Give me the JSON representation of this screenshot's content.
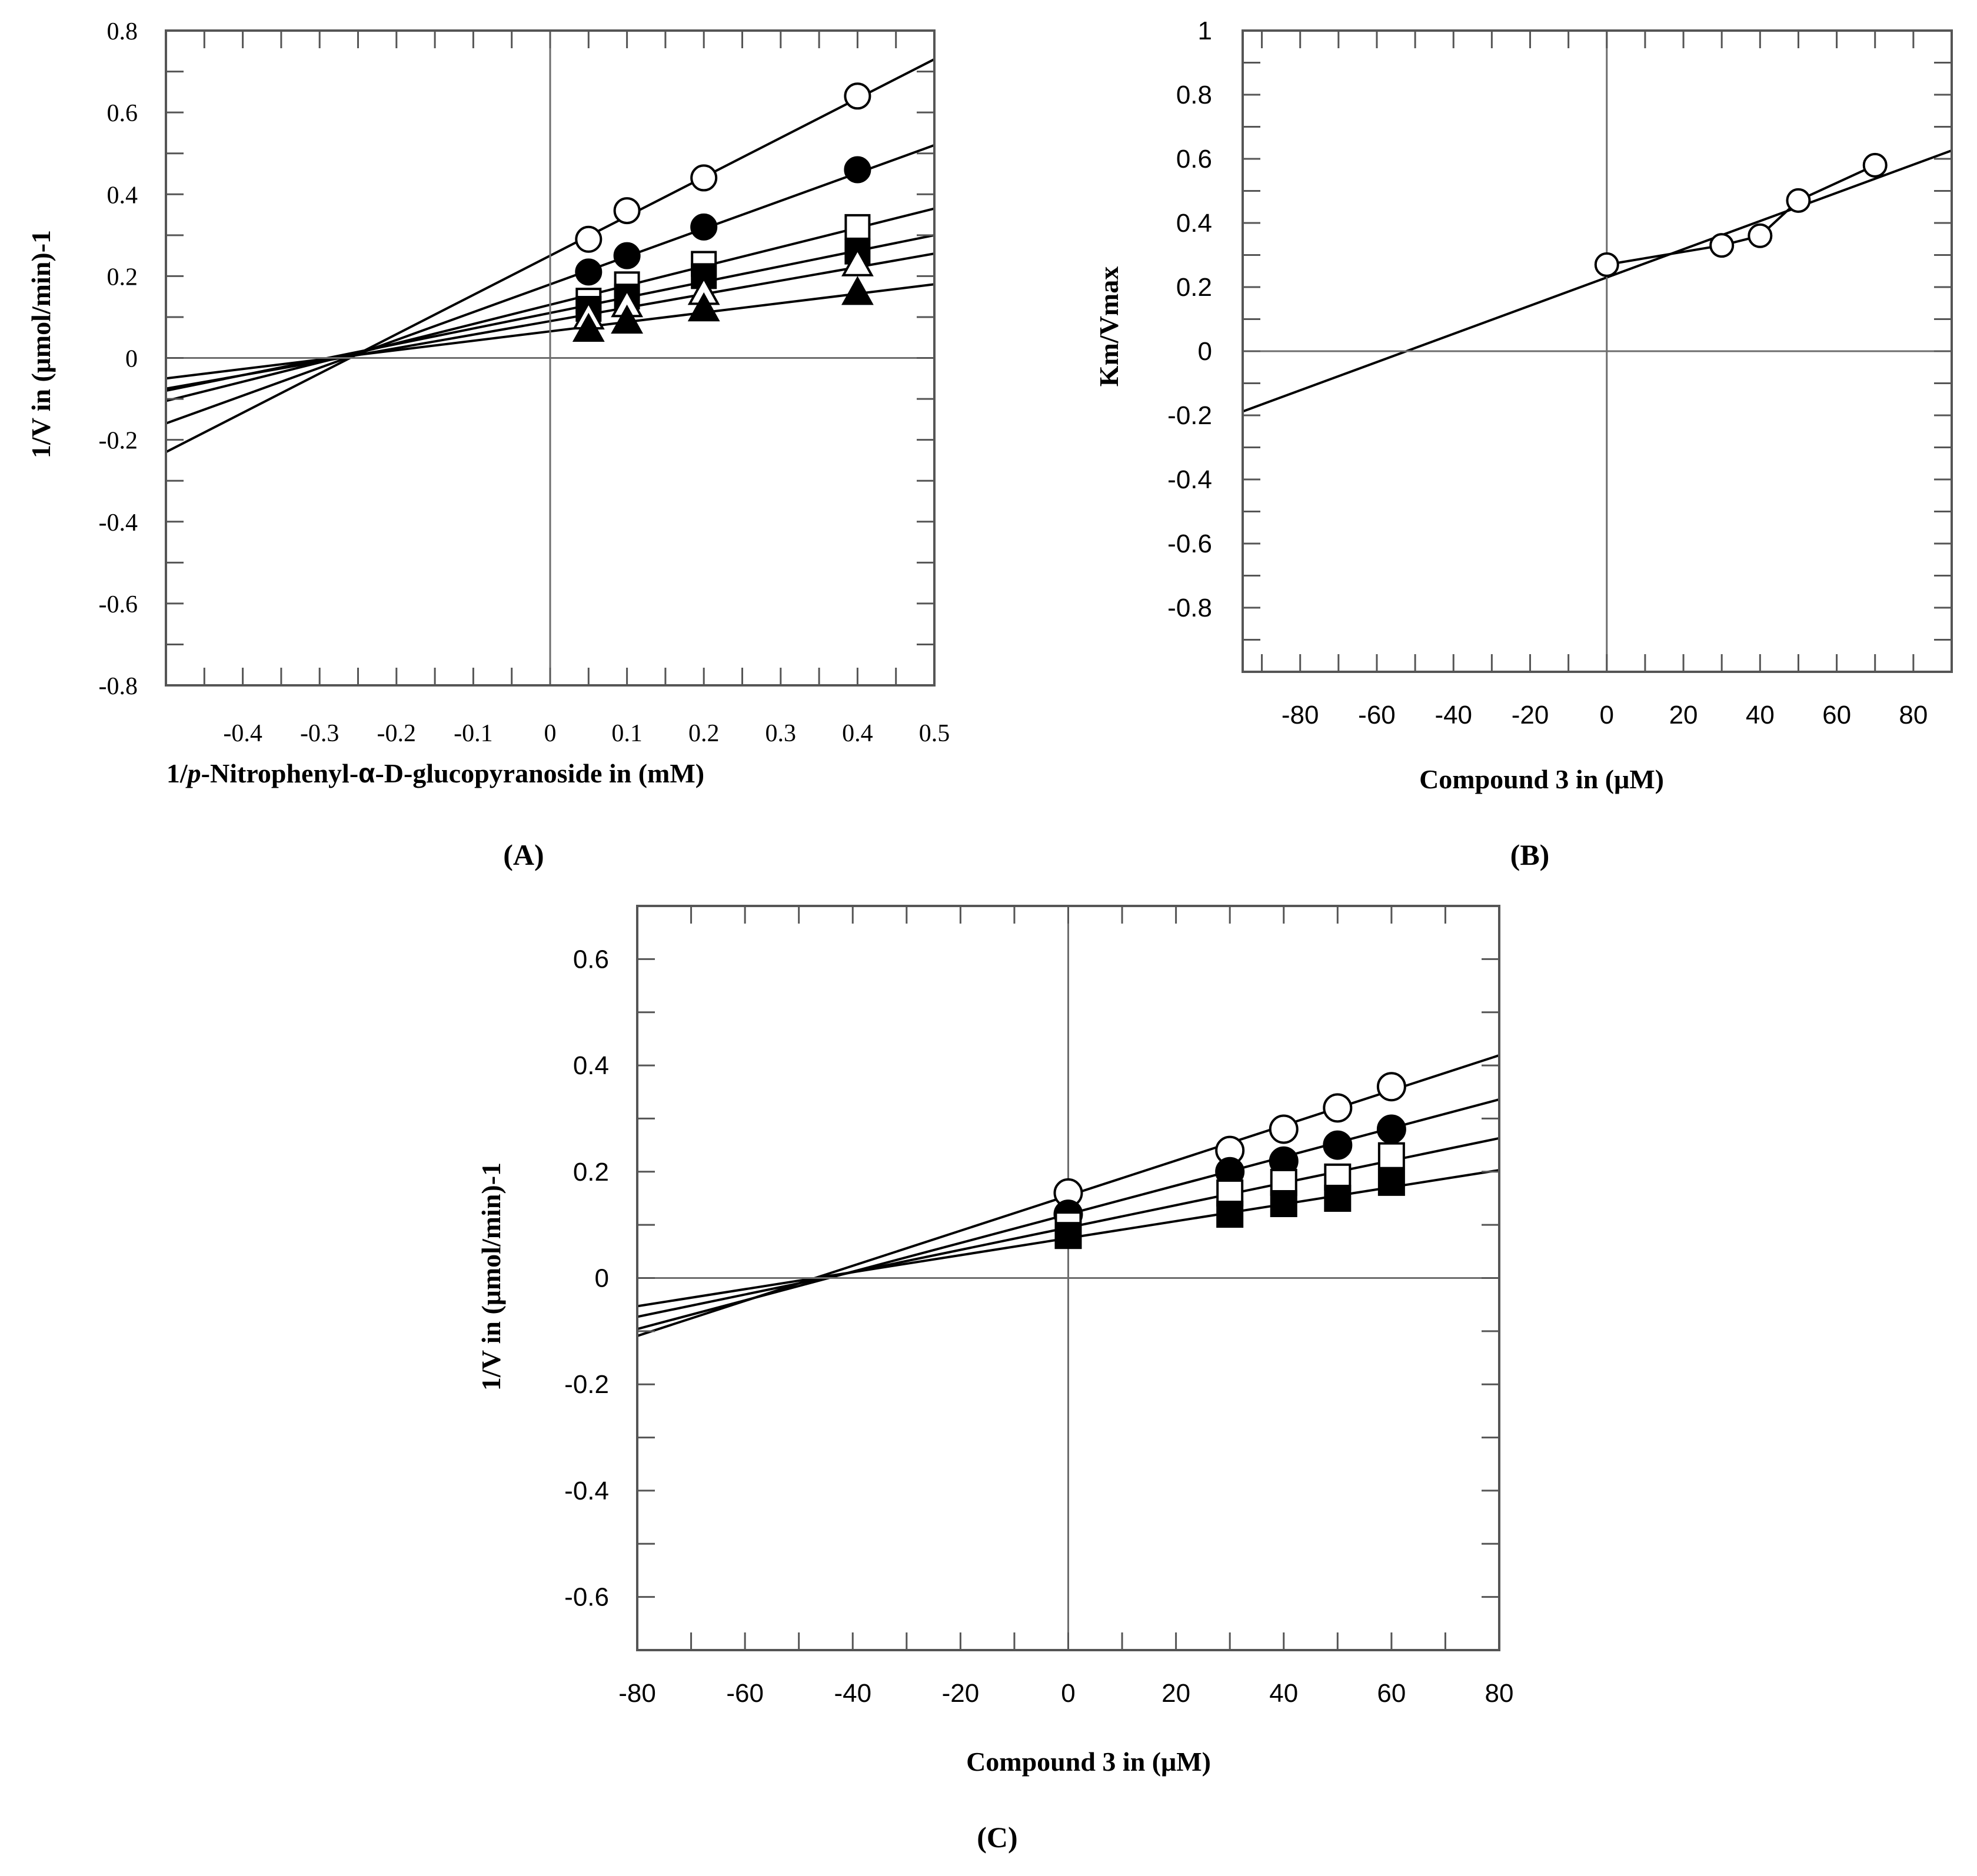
{
  "chart_data": [
    {
      "id": "A",
      "type": "scatter",
      "panel_label": "(A)",
      "xlabel": "1/p-Nitrophenyl-α-D-glucopyranoside in (mM)",
      "xlabel_parts": [
        "1/",
        "p",
        "-Nitrophenyl-",
        "α",
        "-D-glucopyranoside in (mM)"
      ],
      "ylabel": "1/V in (μmol/min)-1",
      "xlim": [
        -0.5,
        0.5
      ],
      "ylim": [
        -0.8,
        0.8
      ],
      "x_tick_labels": [
        "-0.4",
        "-0.3",
        "-0.2",
        "-0.1",
        "0",
        "0.1",
        "0.2",
        "0.3",
        "0.4",
        "0.5"
      ],
      "x_tick_values": [
        -0.4,
        -0.3,
        -0.2,
        -0.1,
        0,
        0.1,
        0.2,
        0.3,
        0.4,
        0.5
      ],
      "y_tick_labels": [
        "0.8",
        "0.6",
        "0.4",
        "0.2",
        "0",
        "-0.2",
        "-0.4",
        "-0.6",
        "-0.8"
      ],
      "y_tick_values": [
        0.8,
        0.6,
        0.4,
        0.2,
        0,
        -0.2,
        -0.4,
        -0.6,
        -0.8
      ],
      "x": [
        0.05,
        0.1,
        0.2,
        0.4
      ],
      "line_range": [
        -0.5,
        0.5
      ],
      "series": [
        {
          "name": "open circle",
          "marker": "circle",
          "fill": "open",
          "values": [
            0.29,
            0.36,
            0.44,
            0.64
          ],
          "fit": {
            "slope": 0.96,
            "intercept": 0.25
          }
        },
        {
          "name": "filled circle",
          "marker": "circle",
          "fill": "filled",
          "values": [
            0.21,
            0.25,
            0.32,
            0.46
          ],
          "fit": {
            "slope": 0.68,
            "intercept": 0.18
          }
        },
        {
          "name": "open square",
          "marker": "square",
          "fill": "open",
          "values": [
            0.14,
            0.18,
            0.23,
            0.32
          ],
          "fit": {
            "slope": 0.47,
            "intercept": 0.13
          }
        },
        {
          "name": "filled square",
          "marker": "square",
          "fill": "filled",
          "values": [
            0.12,
            0.15,
            0.2,
            0.26
          ],
          "fit": {
            "slope": 0.38,
            "intercept": 0.11
          }
        },
        {
          "name": "open triangle",
          "marker": "triangle",
          "fill": "open",
          "values": [
            0.1,
            0.13,
            0.16,
            0.23
          ],
          "fit": {
            "slope": 0.33,
            "intercept": 0.09
          }
        },
        {
          "name": "filled triangle",
          "marker": "triangle",
          "fill": "filled",
          "values": [
            0.07,
            0.09,
            0.12,
            0.16
          ],
          "fit": {
            "slope": 0.23,
            "intercept": 0.065
          }
        }
      ]
    },
    {
      "id": "B",
      "type": "scatter",
      "panel_label": "(B)",
      "xlabel": "Compound 3 in (μM)",
      "ylabel": "Km/Vmax",
      "xlim": [
        -95,
        90
      ],
      "ylim": [
        -1.0,
        1.0
      ],
      "x_tick_labels": [
        "-80",
        "-60",
        "-40",
        "-20",
        "0",
        "20",
        "40",
        "60",
        "80"
      ],
      "x_tick_values": [
        -80,
        -60,
        -40,
        -20,
        0,
        20,
        40,
        60,
        80
      ],
      "y_tick_labels": [
        "1",
        "0.8",
        "0.6",
        "0.4",
        "0.2",
        "0",
        "-0.2",
        "-0.4",
        "-0.6",
        "-0.8"
      ],
      "y_tick_values": [
        1,
        0.8,
        0.6,
        0.4,
        0.2,
        0,
        -0.2,
        -0.4,
        -0.6,
        -0.8
      ],
      "x": [
        0,
        30,
        40,
        50,
        70
      ],
      "line_range": [
        -95,
        90
      ],
      "series": [
        {
          "name": "Km/Vmax",
          "marker": "circle",
          "fill": "open",
          "values": [
            0.27,
            0.33,
            0.36,
            0.47,
            0.58
          ],
          "fit": {
            "slope": 0.0044,
            "intercept": 0.23
          },
          "connect_points": true
        }
      ]
    },
    {
      "id": "C",
      "type": "scatter",
      "panel_label": "(C)",
      "xlabel": "Compound 3 in (μM)",
      "ylabel": "1/V in (μmol/min)-1",
      "xlim": [
        -80,
        80
      ],
      "ylim": [
        -0.7,
        0.7
      ],
      "x_tick_labels": [
        "-80",
        "-60",
        "-40",
        "-20",
        "0",
        "20",
        "40",
        "60",
        "80"
      ],
      "x_tick_values": [
        -80,
        -60,
        -40,
        -20,
        0,
        20,
        40,
        60,
        80
      ],
      "y_tick_labels": [
        "0.6",
        "0.4",
        "0.2",
        "0",
        "-0.2",
        "-0.4",
        "-0.6"
      ],
      "y_tick_values": [
        0.6,
        0.4,
        0.2,
        0,
        -0.2,
        -0.4,
        -0.6
      ],
      "x": [
        0,
        30,
        40,
        50,
        60
      ],
      "line_range": [
        -80,
        80
      ],
      "series": [
        {
          "name": "open circle",
          "marker": "circle",
          "fill": "open",
          "values": [
            0.16,
            0.24,
            0.28,
            0.32,
            0.36
          ],
          "fit": {
            "slope": 0.0033,
            "intercept": 0.155
          }
        },
        {
          "name": "filled circle",
          "marker": "circle",
          "fill": "filled",
          "values": [
            0.12,
            0.2,
            0.22,
            0.25,
            0.28
          ],
          "fit": {
            "slope": 0.0027,
            "intercept": 0.12
          }
        },
        {
          "name": "open square",
          "marker": "square",
          "fill": "open",
          "values": [
            0.1,
            0.16,
            0.18,
            0.19,
            0.23
          ],
          "fit": {
            "slope": 0.0021,
            "intercept": 0.095
          }
        },
        {
          "name": "filled square",
          "marker": "square",
          "fill": "filled",
          "values": [
            0.08,
            0.12,
            0.14,
            0.15,
            0.18
          ],
          "fit": {
            "slope": 0.0016,
            "intercept": 0.075
          }
        }
      ]
    }
  ]
}
